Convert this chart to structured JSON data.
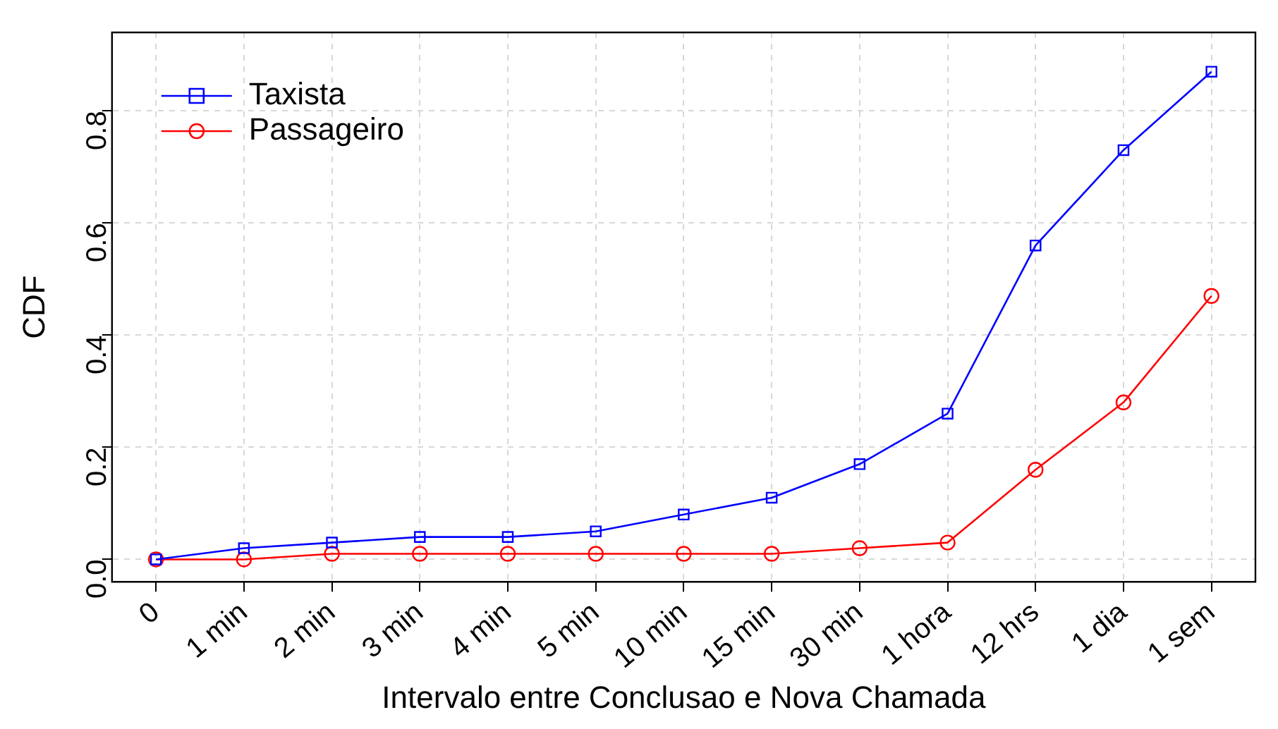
{
  "chart_data": {
    "type": "line",
    "xlabel": "Intervalo entre Conclusao e Nova Chamada",
    "ylabel": "CDF",
    "categories": [
      "0",
      "1 min",
      "2 min",
      "3 min",
      "4 min",
      "5 min",
      "10 min",
      "15 min",
      "30 min",
      "1 hora",
      "12 hrs",
      "1 dia",
      "1 sem"
    ],
    "series": [
      {
        "name": "Taxista",
        "color": "#0000ff",
        "marker": "square",
        "values": [
          0,
          0.02,
          0.03,
          0.04,
          0.04,
          0.05,
          0.08,
          0.11,
          0.17,
          0.26,
          0.56,
          0.73,
          0.87
        ]
      },
      {
        "name": "Passageiro",
        "color": "#ff0000",
        "marker": "circle",
        "values": [
          0,
          0,
          0.01,
          0.01,
          0.01,
          0.01,
          0.01,
          0.01,
          0.02,
          0.03,
          0.16,
          0.28,
          0.47
        ]
      }
    ],
    "ylim": [
      -0.04,
      0.94
    ],
    "yticks": [
      {
        "value": 0,
        "label": "0.0"
      },
      {
        "value": 0.2,
        "label": "0.2"
      },
      {
        "value": 0.4,
        "label": "0.4"
      },
      {
        "value": 0.6,
        "label": "0.6"
      },
      {
        "value": 0.8,
        "label": "0.8"
      }
    ],
    "grid": true,
    "legend": "top left",
    "line_style": "solid"
  }
}
